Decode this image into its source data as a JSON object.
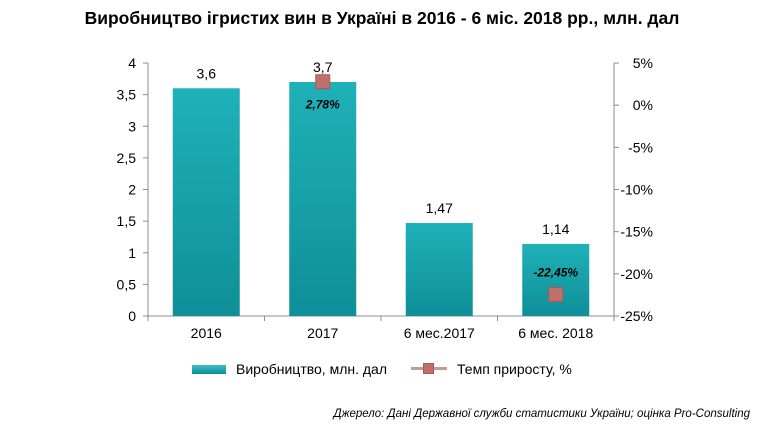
{
  "title": "Виробництво ігристих вин в Україні в 2016 - 6 міс. 2018 рр., млн. дал",
  "source": "Джерело: Дані Державної служби статистики України; оцінка Pro-Consulting",
  "colors": {
    "bar": "#18a2aa",
    "growth_marker": "#c0706a",
    "growth_line": "#c79b95"
  },
  "chart_data": {
    "type": "bar",
    "categories": [
      "2016",
      "2017",
      "6 мес.2017",
      "6 мес. 2018"
    ],
    "series": [
      {
        "name": "Виробництво, млн. дал",
        "axis": "left",
        "values": [
          3.6,
          3.7,
          1.47,
          1.14
        ],
        "labels": [
          "3,6",
          "3,7",
          "1,47",
          "1,14"
        ]
      },
      {
        "name": "Темп приросту, %",
        "type": "scatter",
        "axis": "right",
        "values": [
          null,
          2.78,
          null,
          -22.45
        ],
        "labels": [
          null,
          "2,78%",
          null,
          "-22,45%"
        ]
      }
    ],
    "y_left": {
      "ylim": [
        0,
        4
      ],
      "ticks": [
        "0",
        "0,5",
        "1",
        "1,5",
        "2",
        "2,5",
        "3",
        "3,5",
        "4"
      ]
    },
    "y_right": {
      "ylim": [
        -25,
        5
      ],
      "ticks": [
        "-25%",
        "-20%",
        "-15%",
        "-10%",
        "-5%",
        "0%",
        "5%"
      ]
    },
    "legend": "bottom",
    "grid": false
  }
}
